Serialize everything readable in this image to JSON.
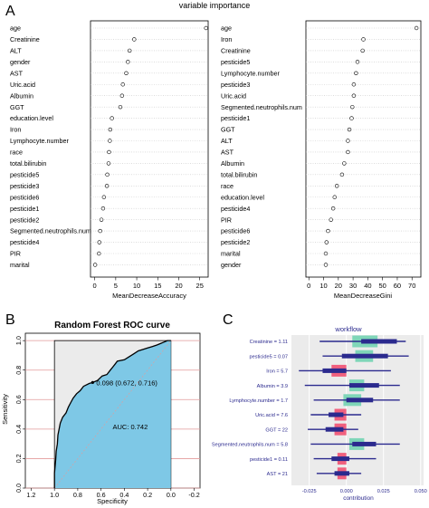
{
  "panel_labels": [
    "A",
    "B",
    "C"
  ],
  "chart_data": [
    {
      "type": "scatter",
      "panel": "A",
      "title": "variable importance",
      "xlabel": "MeanDecreaseAccuracy",
      "xlim": [
        -1,
        27
      ],
      "xticks": [
        0,
        5,
        10,
        15,
        20,
        25
      ],
      "categories": [
        "age",
        "Creatinine",
        "ALT",
        "gender",
        "AST",
        "Uric.acid",
        "Albumin",
        "GGT",
        "education.level",
        "Iron",
        "Lymphocyte.number",
        "race",
        "total.bilirubin",
        "pesticide5",
        "pesticide3",
        "pesticide6",
        "pesticide1",
        "pesticide2",
        "Segmented.neutrophils.num",
        "pesticide4",
        "PIR",
        "marital"
      ],
      "values": [
        26.5,
        9.4,
        8.3,
        7.9,
        7.5,
        6.7,
        6.5,
        6.1,
        4.1,
        3.7,
        3.6,
        3.4,
        3.3,
        3.0,
        2.9,
        2.2,
        2.0,
        1.6,
        1.3,
        1.1,
        1.0,
        0.1
      ]
    },
    {
      "type": "scatter",
      "panel": "A",
      "xlabel": "MeanDecreaseGini",
      "xlim": [
        -2,
        76
      ],
      "xticks": [
        0,
        10,
        20,
        30,
        40,
        50,
        60,
        70
      ],
      "categories": [
        "age",
        "Iron",
        "Creatinine",
        "pesticide5",
        "Lymphocyte.number",
        "pesticide3",
        "Uric.acid",
        "Segmented.neutrophils.num",
        "pesticide1",
        "GGT",
        "ALT",
        "AST",
        "Albumin",
        "total.bilirubin",
        "race",
        "education.level",
        "pesticide4",
        "PIR",
        "pesticide6",
        "pesticide2",
        "marital",
        "gender"
      ],
      "values": [
        73,
        37,
        36.5,
        33,
        32,
        30.5,
        30.5,
        29.5,
        29,
        27.5,
        26.5,
        26.5,
        24,
        22.5,
        19,
        17.5,
        16.5,
        15,
        13,
        12,
        11.5,
        11.5
      ]
    },
    {
      "type": "line",
      "panel": "B",
      "title": "Random Forest ROC curve",
      "xlabel": "Specificity",
      "ylabel": "Sensitivity",
      "xlim": [
        1.25,
        -0.25
      ],
      "ylim": [
        0,
        1.05
      ],
      "xticks": [
        "1.2",
        "1.0",
        "0.8",
        "0.6",
        "0.4",
        "0.2",
        "0.0",
        "-0.2"
      ],
      "yticks": [
        "0.0",
        "0.2",
        "0.4",
        "0.6",
        "0.8",
        "1.0"
      ],
      "x": [
        1.0,
        1.0,
        0.99,
        0.985,
        0.975,
        0.97,
        0.96,
        0.95,
        0.93,
        0.9,
        0.88,
        0.86,
        0.84,
        0.81,
        0.78,
        0.75,
        0.7,
        0.67,
        0.63,
        0.59,
        0.55,
        0.52,
        0.5,
        0.48,
        0.46,
        0.4,
        0.36,
        0.32,
        0.28,
        0.24,
        0.2,
        0.16,
        0.12,
        0.09,
        0.06,
        0.03,
        0.0
      ],
      "y": [
        0.0,
        0.1,
        0.19,
        0.25,
        0.3,
        0.36,
        0.4,
        0.44,
        0.48,
        0.51,
        0.55,
        0.58,
        0.61,
        0.64,
        0.66,
        0.69,
        0.71,
        0.716,
        0.73,
        0.76,
        0.77,
        0.8,
        0.82,
        0.84,
        0.86,
        0.87,
        0.89,
        0.91,
        0.93,
        0.94,
        0.95,
        0.96,
        0.97,
        0.98,
        0.99,
        1.0,
        1.0
      ],
      "annotations": {
        "best_point": {
          "x": 0.672,
          "y": 0.716,
          "label": "0.098 (0.672, 0.716)"
        },
        "auc": "AUC: 0.742"
      }
    },
    {
      "type": "bar",
      "panel": "C",
      "title": "workflow",
      "xlabel": "contribution",
      "xlim": [
        -0.037,
        0.052
      ],
      "xticks": [
        "-0.025",
        "0.000",
        "0.025",
        "0.050"
      ],
      "categories": [
        "Creatinine = 1.11",
        "pesticide5 = 0.07",
        "Iron = 5.7",
        "Albumin = 3.9",
        "Lymphocyte.number = 1.7",
        "Uric.acid = 7.6",
        "GGT = 22",
        "Segmented.neutrophils.num = 5.8",
        "pesticide1 = 0.11",
        "AST = 21"
      ],
      "contribution_box": [
        [
          0.004,
          0.021
        ],
        [
          0.006,
          0.018
        ],
        [
          -0.01,
          0.0
        ],
        [
          0.002,
          0.012
        ],
        [
          -0.002,
          0.01
        ],
        [
          -0.008,
          0.0
        ],
        [
          -0.008,
          0.0
        ],
        [
          0.002,
          0.012
        ],
        [
          -0.006,
          0.0
        ],
        [
          -0.006,
          0.0
        ]
      ],
      "distribution_box": [
        [
          0.01,
          0.034
        ],
        [
          -0.003,
          0.028
        ],
        [
          -0.016,
          0.0
        ],
        [
          0.002,
          0.022
        ],
        [
          0.0,
          0.018
        ],
        [
          -0.012,
          -0.002
        ],
        [
          -0.014,
          -0.002
        ],
        [
          0.004,
          0.02
        ],
        [
          -0.01,
          0.002
        ],
        [
          -0.008,
          0.002
        ]
      ],
      "whiskers": [
        [
          -0.018,
          0.04
        ],
        [
          -0.016,
          0.042
        ],
        [
          -0.032,
          0.03
        ],
        [
          -0.028,
          0.036
        ],
        [
          -0.022,
          0.036
        ],
        [
          -0.024,
          0.01
        ],
        [
          -0.026,
          0.008
        ],
        [
          -0.024,
          0.036
        ],
        [
          -0.022,
          0.02
        ],
        [
          -0.02,
          0.01
        ]
      ],
      "colors": {
        "contribution_positive": "#7fd6b8",
        "contribution_negative": "#f0607e",
        "distribution": "#2b2a8e"
      }
    }
  ]
}
